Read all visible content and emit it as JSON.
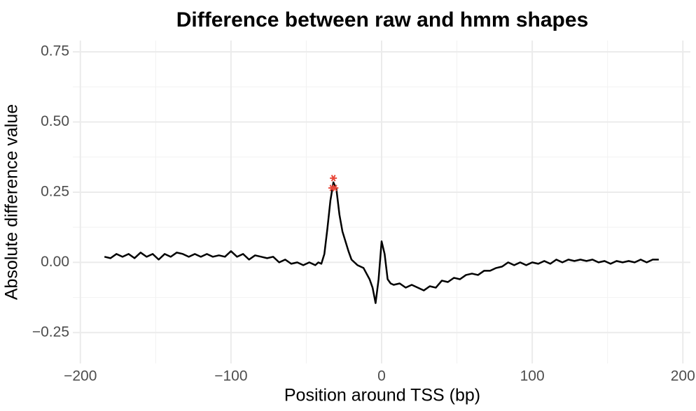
{
  "chart_data": {
    "type": "line",
    "title": "Difference between raw and hmm shapes",
    "x_label": "Position around TSS (bp)",
    "y_label": "Absolute difference value",
    "x": [
      -184,
      -180,
      -176,
      -172,
      -168,
      -164,
      -160,
      -156,
      -152,
      -148,
      -144,
      -140,
      -136,
      -132,
      -128,
      -124,
      -120,
      -116,
      -112,
      -108,
      -104,
      -100,
      -96,
      -92,
      -88,
      -84,
      -80,
      -76,
      -72,
      -68,
      -64,
      -60,
      -56,
      -52,
      -48,
      -44,
      -42,
      -40,
      -38,
      -36,
      -34,
      -32,
      -30,
      -28,
      -26,
      -24,
      -22,
      -20,
      -16,
      -12,
      -8,
      -6,
      -4,
      -2,
      0,
      2,
      4,
      6,
      8,
      12,
      16,
      20,
      24,
      28,
      32,
      36,
      40,
      44,
      48,
      52,
      56,
      60,
      64,
      68,
      72,
      76,
      80,
      84,
      88,
      92,
      96,
      100,
      104,
      108,
      112,
      116,
      120,
      124,
      128,
      132,
      136,
      140,
      144,
      148,
      152,
      156,
      160,
      164,
      168,
      172,
      176,
      180,
      184
    ],
    "series": [
      {
        "color": "#000000",
        "values": [
          0.02,
          0.015,
          0.03,
          0.02,
          0.03,
          0.015,
          0.035,
          0.02,
          0.03,
          0.01,
          0.03,
          0.02,
          0.035,
          0.03,
          0.02,
          0.03,
          0.02,
          0.03,
          0.02,
          0.025,
          0.02,
          0.04,
          0.02,
          0.03,
          0.01,
          0.025,
          0.02,
          0.015,
          0.02,
          0.0,
          0.01,
          -0.005,
          0.0,
          -0.01,
          0.0,
          -0.01,
          0.0,
          -0.005,
          0.03,
          0.12,
          0.22,
          0.285,
          0.26,
          0.17,
          0.11,
          0.075,
          0.04,
          0.01,
          -0.01,
          -0.02,
          -0.06,
          -0.09,
          -0.145,
          -0.06,
          0.075,
          0.03,
          -0.06,
          -0.075,
          -0.08,
          -0.075,
          -0.09,
          -0.08,
          -0.09,
          -0.1,
          -0.085,
          -0.09,
          -0.065,
          -0.07,
          -0.055,
          -0.06,
          -0.045,
          -0.04,
          -0.045,
          -0.03,
          -0.03,
          -0.02,
          -0.015,
          0.0,
          -0.01,
          0.0,
          -0.01,
          0.0,
          -0.005,
          0.005,
          -0.005,
          0.01,
          0.0,
          0.01,
          0.005,
          0.01,
          0.005,
          0.01,
          0.0,
          0.005,
          -0.005,
          0.005,
          0.0,
          0.005,
          0.0,
          0.01,
          0.0,
          0.01,
          0.01
        ]
      }
    ],
    "points": {
      "x": [
        -32,
        -33,
        -31
      ],
      "values": [
        0.3,
        0.265,
        0.265
      ],
      "color": "#e8473a"
    },
    "xlim": [
      -205,
      205
    ],
    "ylim": [
      -0.36,
      0.79
    ],
    "xticks": [
      {
        "value": -200,
        "label": "−200"
      },
      {
        "value": -100,
        "label": "−100"
      },
      0,
      100,
      200
    ],
    "yticks": [
      {
        "value": -0.25,
        "label": "−0.25"
      },
      {
        "value": 0,
        "label": "0.00"
      },
      {
        "value": 0.25,
        "label": "0.25"
      },
      {
        "value": 0.5,
        "label": "0.50"
      },
      0.75
    ],
    "grid": true
  }
}
